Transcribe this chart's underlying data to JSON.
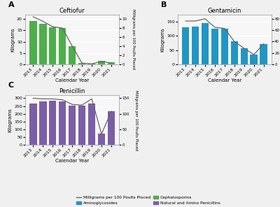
{
  "years": [
    2013,
    2014,
    2015,
    2016,
    2017,
    2018,
    2019,
    2020,
    2021
  ],
  "ceftiofur": {
    "title": "Ceftiofur",
    "bars": [
      19.0,
      18.0,
      16.5,
      16.0,
      8.0,
      0.5,
      0.3,
      1.5,
      1.0
    ],
    "line": [
      10.5,
      9.5,
      8.3,
      8.0,
      4.0,
      0.25,
      0.1,
      0.6,
      0.3
    ],
    "bar_color": "#4daf4a",
    "ylim_bar": [
      0,
      22
    ],
    "ylim_line": [
      0,
      11
    ],
    "yticks_bar": [
      0,
      5,
      10,
      15,
      20
    ],
    "yticks_line": [
      0,
      2,
      4,
      6,
      8,
      10
    ]
  },
  "gentamicin": {
    "title": "Gentamicin",
    "bars": [
      130,
      132,
      145,
      125,
      125,
      80,
      57,
      35,
      70
    ],
    "line": [
      76,
      76,
      80,
      65,
      63,
      40,
      28,
      17,
      36
    ],
    "bar_color": "#2196c4",
    "ylim_bar": [
      0,
      175
    ],
    "ylim_line": [
      0,
      87.5
    ],
    "yticks_bar": [
      0,
      50,
      100,
      150
    ],
    "yticks_line": [
      0,
      20,
      40,
      60,
      80
    ]
  },
  "penicillin": {
    "title": "Penicillin",
    "bars": [
      268,
      280,
      283,
      278,
      252,
      252,
      265,
      72,
      215
    ],
    "line": [
      150,
      148,
      148,
      145,
      130,
      128,
      148,
      35,
      108
    ],
    "bar_color": "#7b5ea7",
    "ylim_bar": [
      0,
      320
    ],
    "ylim_line": [
      0,
      160
    ],
    "yticks_bar": [
      0,
      50,
      100,
      150,
      200,
      250,
      300
    ],
    "yticks_line": [
      0,
      50,
      100,
      150
    ]
  },
  "line_color": "#666666",
  "legend_items": [
    {
      "label": "Aminoglycosides",
      "color": "#2196c4"
    },
    {
      "label": "Cephalosporins",
      "color": "#4daf4a"
    },
    {
      "label": "Natural and Amino Penicillins",
      "color": "#7b5ea7"
    }
  ],
  "legend_line_label": "Milligrams per 100 Poults Placed",
  "xlabel": "Calendar Year",
  "ylabel_left": "Kilograms",
  "ylabel_right": "Milligrams per 100 Poults Placed",
  "bg_color": "#f7f7f7",
  "fig_bg": "#f0f0f0"
}
